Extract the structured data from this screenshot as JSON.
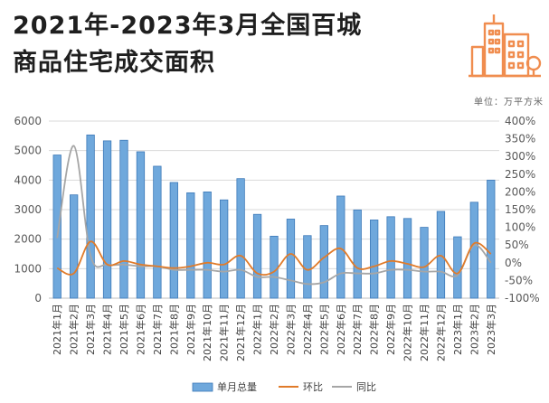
{
  "header": {
    "title_line1": "2021年-2023年3月全国百城",
    "title_line2": "商品住宅成交面积",
    "unit": "单位：万平方米",
    "icon": "city-buildings-icon"
  },
  "colors": {
    "bar": "#6fa8dc",
    "bar_edge": "#3d79b8",
    "line_mom": "#e07b2a",
    "line_yoy": "#a6a6a6",
    "logo": "#f08d4f"
  },
  "chart_data": {
    "type": "bar",
    "categories": [
      "2021年1月",
      "2021年2月",
      "2021年3月",
      "2021年4月",
      "2021年5月",
      "2021年6月",
      "2021年7月",
      "2021年8月",
      "2021年9月",
      "2021年10月",
      "2021年11月",
      "2021年12月",
      "2022年1月",
      "2022年2月",
      "2022年3月",
      "2022年4月",
      "2022年5月",
      "2022年6月",
      "2022年7月",
      "2022年8月",
      "2022年9月",
      "2022年10月",
      "2022年11月",
      "2022年12月",
      "2023年1月",
      "2023年2月",
      "2023年3月"
    ],
    "series": [
      {
        "name": "单月总量",
        "type": "bar",
        "axis": "left",
        "values": [
          4850,
          3500,
          5530,
          5330,
          5350,
          4960,
          4470,
          3920,
          3570,
          3600,
          3330,
          4050,
          2840,
          2100,
          2680,
          2120,
          2460,
          3460,
          2990,
          2650,
          2760,
          2700,
          2400,
          2940,
          2080,
          3250,
          4000
        ]
      },
      {
        "name": "环比",
        "type": "line",
        "axis": "right",
        "values": [
          -15,
          -30,
          60,
          -5,
          5,
          -5,
          -10,
          -15,
          -10,
          0,
          -5,
          20,
          -30,
          -25,
          25,
          -20,
          15,
          40,
          -15,
          -10,
          5,
          -3,
          -12,
          20,
          -30,
          55,
          25
        ]
      },
      {
        "name": "同比",
        "type": "line",
        "axis": "right",
        "values": [
          70,
          330,
          20,
          -5,
          -5,
          -10,
          -10,
          -20,
          -20,
          -20,
          -25,
          -20,
          -40,
          -40,
          -50,
          -60,
          -55,
          -30,
          -30,
          -30,
          -20,
          -20,
          -25,
          -25,
          -35,
          50,
          0
        ]
      }
    ],
    "y_left": {
      "min": 0,
      "max": 6000,
      "ticks": [
        "0",
        "1000",
        "2000",
        "3000",
        "4000",
        "5000",
        "6000"
      ]
    },
    "y_right": {
      "min": -100,
      "max": 400,
      "ticks": [
        "-100%",
        "-50%",
        "0%",
        "50%",
        "100%",
        "150%",
        "200%",
        "250%",
        "300%",
        "350%",
        "400%"
      ]
    },
    "grid": true,
    "legend_position": "bottom"
  }
}
